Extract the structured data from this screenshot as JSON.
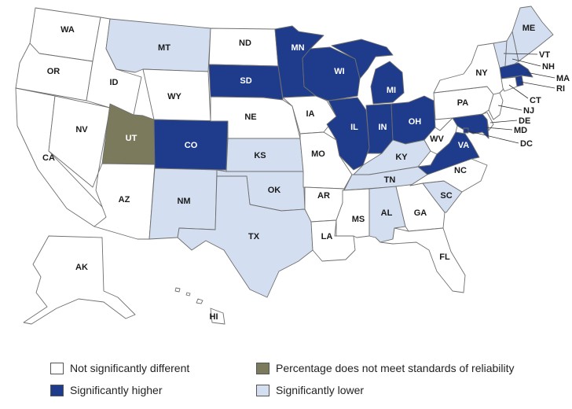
{
  "colors": {
    "not_different": "#ffffff",
    "higher": "#1f3c8c",
    "lower": "#d3dff1",
    "unreliable": "#7c7a5c",
    "border": "#6f6f6f"
  },
  "states": {
    "WA": "not_different",
    "OR": "not_different",
    "CA": "not_different",
    "ID": "not_different",
    "NV": "not_different",
    "MT": "lower",
    "WY": "not_different",
    "UT": "unreliable",
    "AZ": "not_different",
    "CO": "higher",
    "NM": "lower",
    "ND": "not_different",
    "SD": "higher",
    "NE": "not_different",
    "KS": "lower",
    "OK": "lower",
    "TX": "lower",
    "MN": "higher",
    "IA": "not_different",
    "MO": "not_different",
    "AR": "not_different",
    "LA": "not_different",
    "WI": "higher",
    "IL": "higher",
    "MI": "higher",
    "IN": "higher",
    "OH": "higher",
    "KY": "lower",
    "TN": "lower",
    "MS": "not_different",
    "AL": "lower",
    "GA": "not_different",
    "FL": "not_different",
    "SC": "lower",
    "NC": "not_different",
    "VA": "higher",
    "WV": "not_different",
    "PA": "not_different",
    "NY": "not_different",
    "ME": "lower",
    "VT": "lower",
    "NH": "lower",
    "MA": "higher",
    "RI": "higher",
    "CT": "not_different",
    "NJ": "not_different",
    "DE": "not_different",
    "MD": "higher",
    "DC": "higher",
    "AK": "not_different",
    "HI": "not_different"
  },
  "labels": {
    "WA": "WA",
    "OR": "OR",
    "CA": "CA",
    "ID": "ID",
    "NV": "NV",
    "MT": "MT",
    "WY": "WY",
    "UT": "UT",
    "AZ": "AZ",
    "CO": "CO",
    "NM": "NM",
    "ND": "ND",
    "SD": "SD",
    "NE": "NE",
    "KS": "KS",
    "OK": "OK",
    "TX": "TX",
    "MN": "MN",
    "IA": "IA",
    "MO": "MO",
    "AR": "AR",
    "LA": "LA",
    "WI": "WI",
    "IL": "IL",
    "MI": "MI",
    "IN": "IN",
    "OH": "OH",
    "KY": "KY",
    "TN": "TN",
    "MS": "MS",
    "AL": "AL",
    "GA": "GA",
    "FL": "FL",
    "SC": "SC",
    "NC": "NC",
    "VA": "VA",
    "WV": "WV",
    "PA": "PA",
    "NY": "NY",
    "ME": "ME",
    "VT": "VT",
    "NH": "NH",
    "MA": "MA",
    "RI": "RI",
    "CT": "CT",
    "NJ": "NJ",
    "DE": "DE",
    "MD": "MD",
    "DC": "DC",
    "AK": "AK",
    "HI": "HI"
  },
  "legend": {
    "not_different": "Not significantly different",
    "higher": "Significantly higher",
    "unreliable": "Percentage does not meet standards of reliability",
    "lower": "Significantly lower"
  }
}
